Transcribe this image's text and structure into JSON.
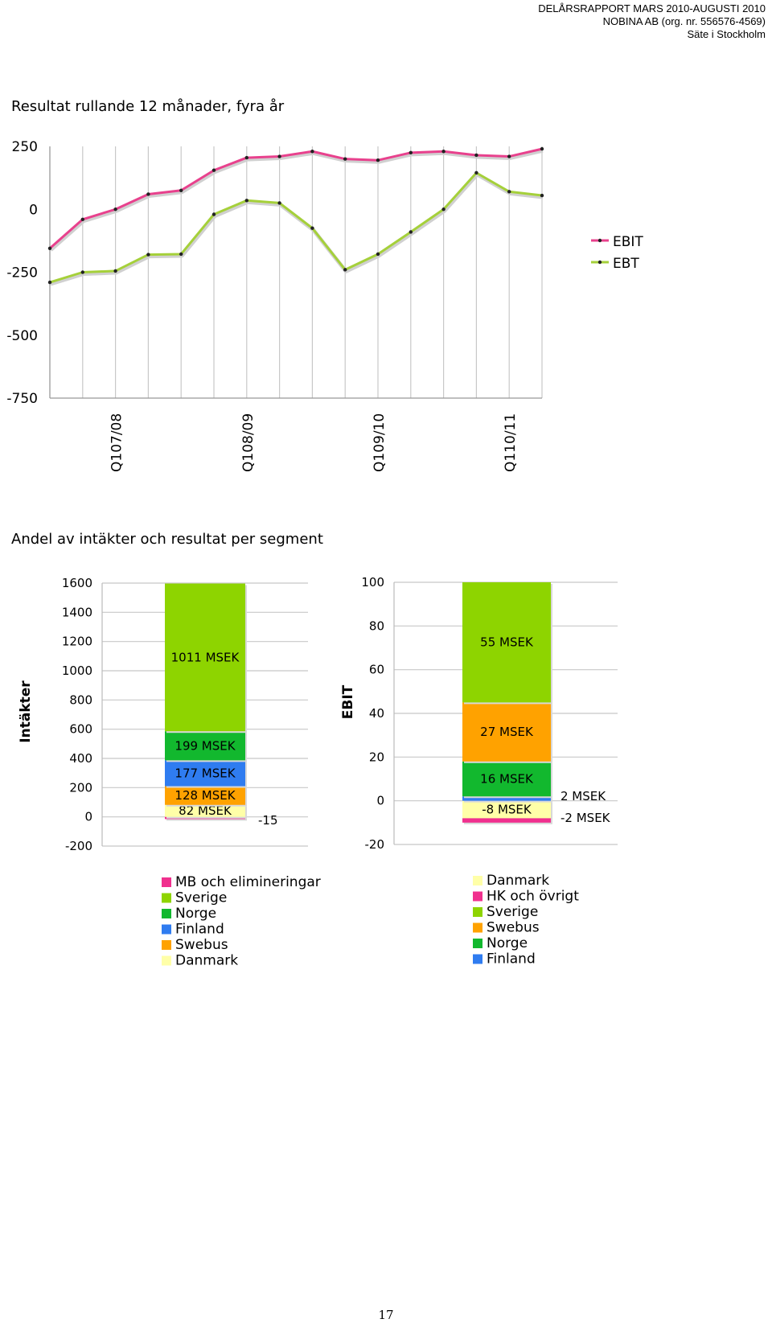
{
  "header": {
    "line1": "DELÅRSRAPPORT MARS 2010-AUGUSTI 2010",
    "line2": "NOBINA AB (org. nr. 556576-4569)",
    "line3": "Säte i Stockholm"
  },
  "section1_title": "Resultat rullande 12 månader, fyra år",
  "section2_title": "Andel av intäkter och resultat per segment",
  "page_number": "17",
  "colors": {
    "ebit": "#e8418d",
    "ebt": "#a5d03a",
    "grid": "#c8c8c8",
    "mb": "#f0308e",
    "sverige": "#8ed400",
    "norge": "#12b82e",
    "finland": "#2f7cf0",
    "swebus": "#ffa200",
    "danmark": "#ffffa8"
  },
  "chart_data": [
    {
      "type": "line",
      "title": "",
      "x": [
        "",
        "",
        "Q107/08",
        "",
        "",
        "",
        "Q108/09",
        "",
        "",
        "",
        "Q109/10",
        "",
        "",
        "",
        "Q110/11",
        ""
      ],
      "series": [
        {
          "name": "EBIT",
          "values": [
            -155,
            -40,
            0,
            60,
            75,
            155,
            205,
            210,
            230,
            200,
            195,
            225,
            230,
            215,
            210,
            240
          ]
        },
        {
          "name": "EBT",
          "values": [
            -290,
            -250,
            -245,
            -180,
            -178,
            -20,
            35,
            25,
            -75,
            -240,
            -178,
            -90,
            0,
            145,
            70,
            55
          ]
        }
      ],
      "ylim": [
        -750,
        250
      ],
      "yticks": [
        "250",
        "0",
        "-250",
        "-500",
        "-750"
      ],
      "legend": "right",
      "grid": "vertical"
    },
    {
      "type": "bar",
      "stacked": true,
      "ylabel": "Intäkter",
      "ylim": [
        -200,
        1600
      ],
      "yticks": [
        "1600",
        "1400",
        "1200",
        "1000",
        "800",
        "600",
        "400",
        "200",
        "0",
        "-200"
      ],
      "segments": [
        {
          "name": "MB och elimineringar",
          "value": -15,
          "label": "-15",
          "color_key": "mb"
        },
        {
          "name": "Danmark",
          "value": 82,
          "label": "82 MSEK",
          "color_key": "danmark"
        },
        {
          "name": "Swebus",
          "value": 128,
          "label": "128 MSEK",
          "color_key": "swebus"
        },
        {
          "name": "Finland",
          "value": 177,
          "label": "177 MSEK",
          "color_key": "finland"
        },
        {
          "name": "Norge",
          "value": 199,
          "label": "199 MSEK",
          "color_key": "norge"
        },
        {
          "name": "Sverige",
          "value": 1011,
          "label": "1011 MSEK",
          "color_key": "sverige"
        }
      ],
      "legend_entries": [
        {
          "name": "MB och elimineringar",
          "color_key": "mb"
        },
        {
          "name": "Sverige",
          "color_key": "sverige"
        },
        {
          "name": "Norge",
          "color_key": "norge"
        },
        {
          "name": "Finland",
          "color_key": "finland"
        },
        {
          "name": "Swebus",
          "color_key": "swebus"
        },
        {
          "name": "Danmark",
          "color_key": "danmark"
        }
      ]
    },
    {
      "type": "bar",
      "stacked": true,
      "ylabel": "EBIT",
      "ylim": [
        -20,
        100
      ],
      "yticks": [
        "100",
        "80",
        "60",
        "40",
        "20",
        "0",
        "-20"
      ],
      "segments": [
        {
          "name": "Danmark",
          "value": -8,
          "label": "-8 MSEK",
          "color_key": "danmark"
        },
        {
          "name": "HK och övrigt",
          "value": -2,
          "label": "-2 MSEK",
          "color_key": "mb"
        },
        {
          "name": "Finland",
          "value": 2,
          "label": "2 MSEK",
          "color_key": "finland"
        },
        {
          "name": "Norge",
          "value": 16,
          "label": "16 MSEK",
          "color_key": "norge"
        },
        {
          "name": "Swebus",
          "value": 27,
          "label": "27 MSEK",
          "color_key": "swebus"
        },
        {
          "name": "Sverige",
          "value": 55,
          "label": "55 MSEK",
          "color_key": "sverige"
        }
      ],
      "legend_entries": [
        {
          "name": "Danmark",
          "color_key": "danmark"
        },
        {
          "name": "HK och övrigt",
          "color_key": "mb"
        },
        {
          "name": "Sverige",
          "color_key": "sverige"
        },
        {
          "name": "Swebus",
          "color_key": "swebus"
        },
        {
          "name": "Norge",
          "color_key": "norge"
        },
        {
          "name": "Finland",
          "color_key": "finland"
        }
      ]
    }
  ]
}
